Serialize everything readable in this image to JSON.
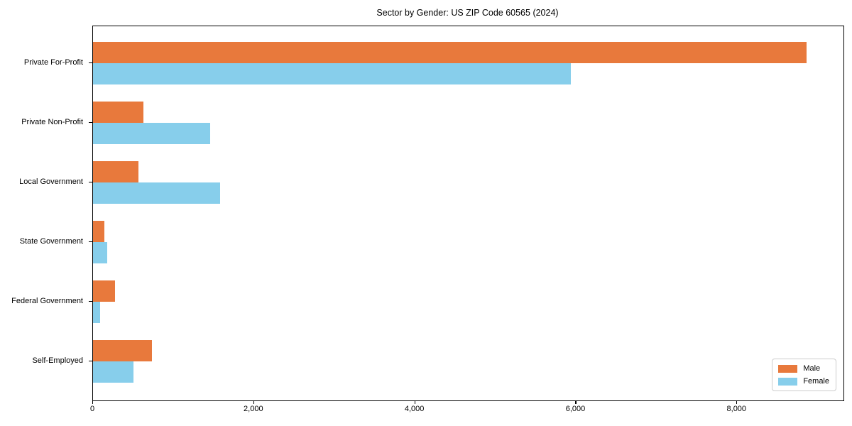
{
  "title": "Sector by Gender: US ZIP Code 60565 (2024)",
  "colors": {
    "male": "#e8793c",
    "female": "#87ceeb",
    "spine": "#000000",
    "legend_border": "#cccccc",
    "background": "#ffffff"
  },
  "legend": {
    "position": "lower right",
    "items": [
      {
        "label": "Male",
        "color": "#e8793c"
      },
      {
        "label": "Female",
        "color": "#87ceeb"
      }
    ]
  },
  "chart_data": {
    "type": "bar",
    "orientation": "horizontal",
    "title": "Sector by Gender: US ZIP Code 60565 (2024)",
    "categories": [
      "Private For-Profit",
      "Private Non-Profit",
      "Local Government",
      "State Government",
      "Federal Government",
      "Self-Employed"
    ],
    "series": [
      {
        "name": "Male",
        "color": "#e8793c",
        "values": [
          8860,
          625,
          565,
          140,
          275,
          735
        ]
      },
      {
        "name": "Female",
        "color": "#87ceeb",
        "values": [
          5930,
          1455,
          1580,
          175,
          90,
          500
        ]
      }
    ],
    "xlabel": "",
    "ylabel": "",
    "xlim": [
      0,
      9320
    ],
    "xticks": [
      0,
      2000,
      4000,
      6000,
      8000
    ],
    "xtick_labels": [
      "0",
      "2,000",
      "4,000",
      "6,000",
      "8,000"
    ],
    "grid": false,
    "legend_position": "lower right"
  }
}
